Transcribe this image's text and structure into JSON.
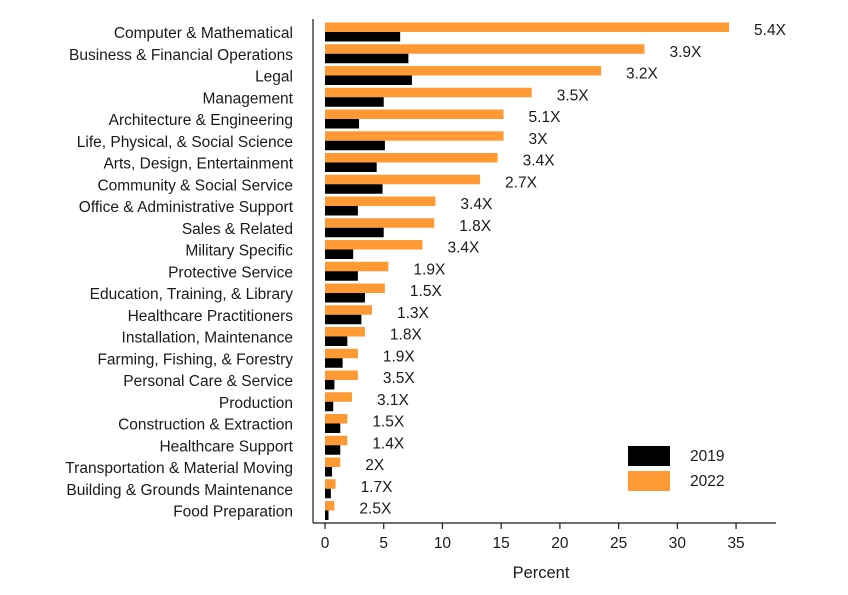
{
  "chart_data": {
    "type": "bar",
    "orientation": "horizontal",
    "xlabel": "Percent",
    "xlim": [
      0,
      38
    ],
    "xticks": [
      0,
      5,
      10,
      15,
      20,
      25,
      30,
      35
    ],
    "grid": false,
    "legend": "bottom-right",
    "categories": [
      "Computer & Mathematical",
      "Business & Financial Operations",
      "Legal",
      "Management",
      "Architecture & Engineering",
      "Life, Physical, & Social Science",
      "Arts, Design, Entertainment",
      "Community & Social Service",
      "Office & Administrative Support",
      "Sales & Related",
      "Military Specific",
      "Protective Service",
      "Education, Training, & Library",
      "Healthcare Practitioners",
      "Installation, Maintenance",
      "Farming, Fishing, & Forestry",
      "Personal Care & Service",
      "Production",
      "Construction & Extraction",
      "Healthcare Support",
      "Transportation & Material Moving",
      "Building & Grounds Maintenance",
      "Food Preparation"
    ],
    "series": [
      {
        "name": "2019",
        "color": "#000000",
        "values": [
          6.4,
          7.1,
          7.4,
          5.0,
          2.9,
          5.1,
          4.4,
          4.9,
          2.8,
          5.0,
          2.4,
          2.8,
          3.4,
          3.1,
          1.9,
          1.5,
          0.8,
          0.7,
          1.3,
          1.3,
          0.6,
          0.5,
          0.3
        ]
      },
      {
        "name": "2022",
        "color": "#FF9933",
        "values": [
          34.4,
          27.2,
          23.5,
          17.6,
          15.2,
          15.2,
          14.7,
          13.2,
          9.4,
          9.3,
          8.3,
          5.4,
          5.1,
          4.0,
          3.4,
          2.8,
          2.8,
          2.3,
          1.9,
          1.9,
          1.3,
          0.9,
          0.8
        ]
      }
    ],
    "ratio_labels": [
      "5.4X",
      "3.9X",
      "3.2X",
      "3.5X",
      "5.1X",
      "3X",
      "3.4X",
      "2.7X",
      "3.4X",
      "1.8X",
      "3.4X",
      "1.9X",
      "1.5X",
      "1.3X",
      "1.8X",
      "1.9X",
      "3.5X",
      "3.1X",
      "1.5X",
      "1.4X",
      "2X",
      "1.7X",
      "2.5X"
    ]
  }
}
